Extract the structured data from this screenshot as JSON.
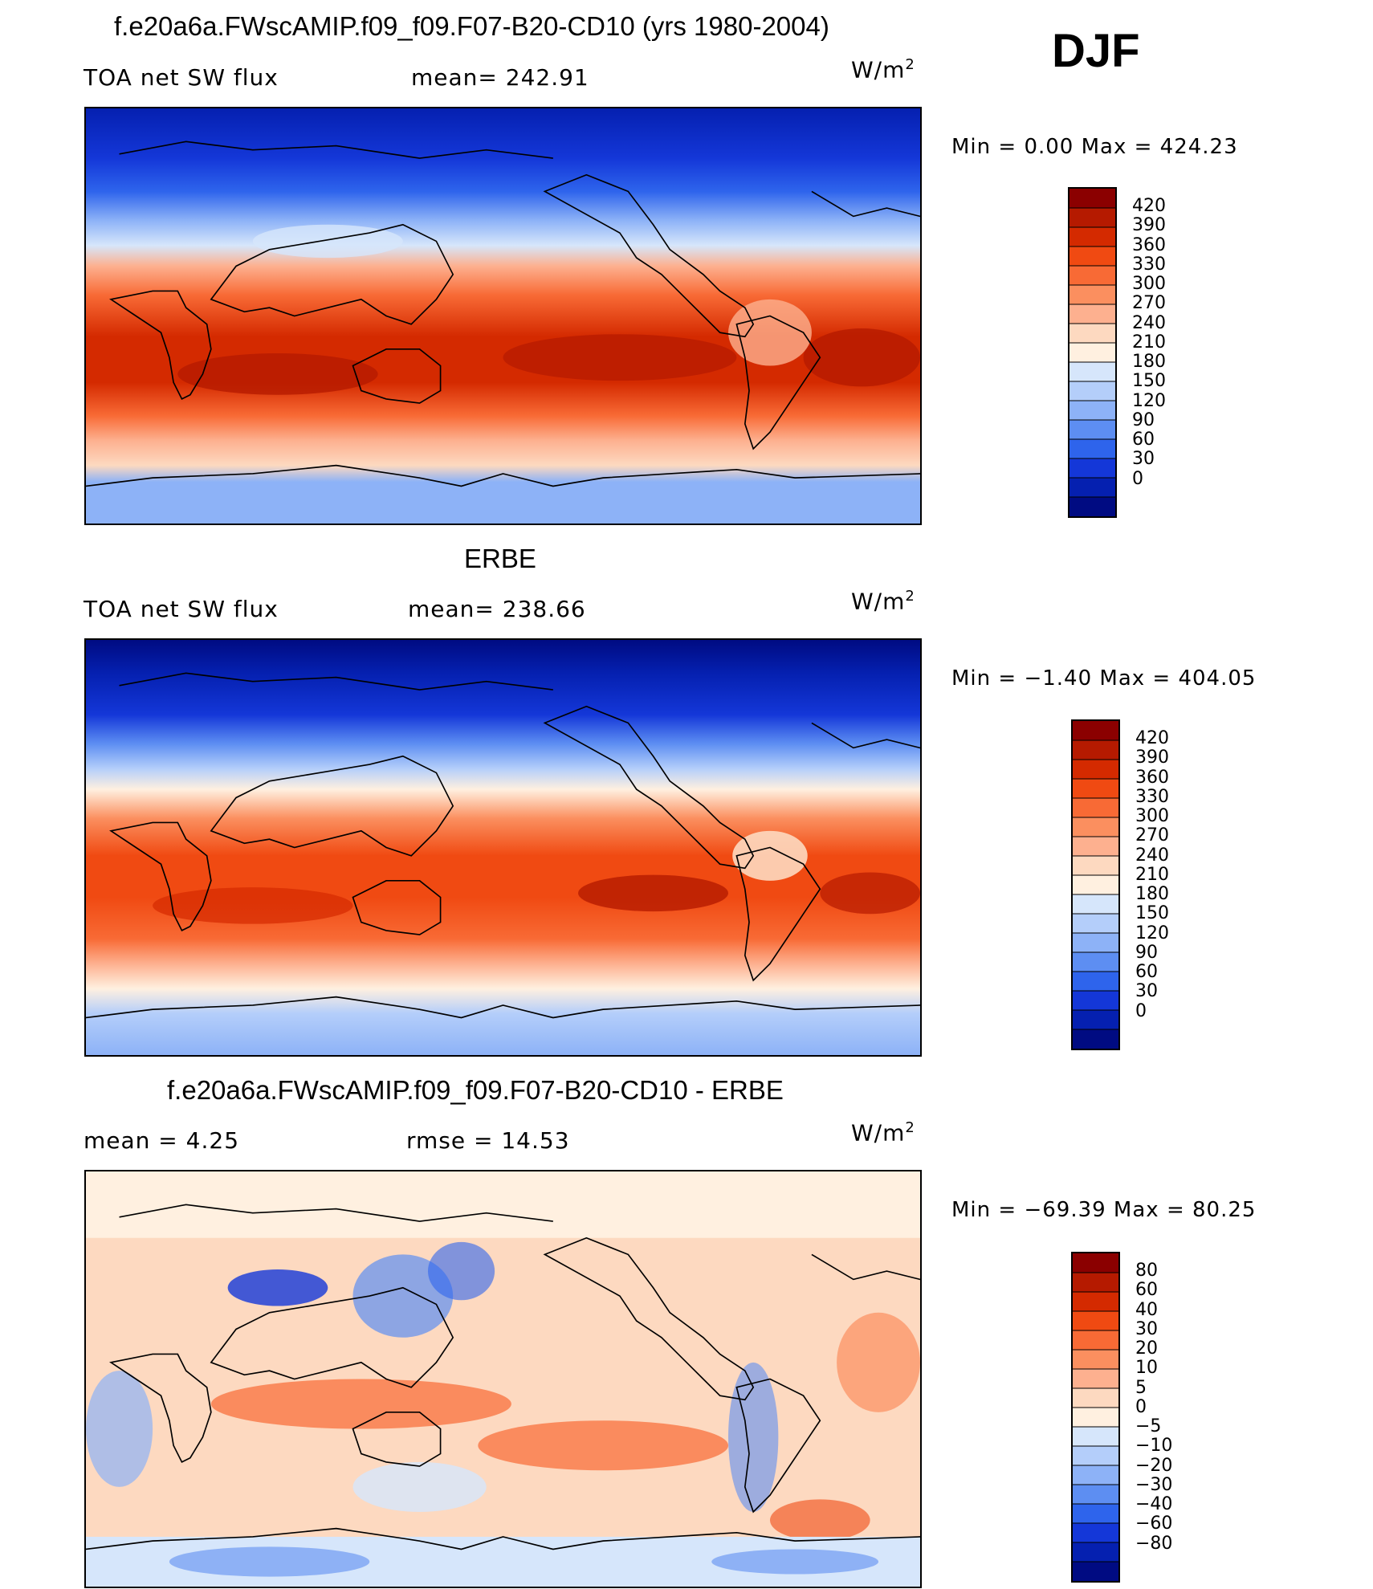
{
  "season": "DJF",
  "units_base": "W/m",
  "units_exp": "2",
  "panels": [
    {
      "title": "f.e20a6a.FWscAMIP.f09_f09.F07-B20-CD10 (yrs 1980-2004)",
      "left": "TOA net SW flux",
      "mid": "mean= 242.91",
      "minmax": "Min =    0.00 Max = 424.23"
    },
    {
      "title": "ERBE",
      "left": "TOA net SW flux",
      "mid": "mean= 238.66",
      "minmax": "Min =  −1.40 Max = 404.05"
    },
    {
      "title": "f.e20a6a.FWscAMIP.f09_f09.F07-B20-CD10 - ERBE",
      "left": "mean =    4.25",
      "mid": "rmse =   14.53",
      "minmax": "Min = −69.39 Max =  80.25"
    }
  ],
  "colorbars": [
    {
      "labels": [
        "420",
        "390",
        "360",
        "330",
        "300",
        "270",
        "240",
        "210",
        "180",
        "150",
        "120",
        "90",
        "60",
        "30",
        "0"
      ],
      "colors": [
        "#8b0000",
        "#b51a00",
        "#d42a00",
        "#f04a12",
        "#f86a35",
        "#fb8f5f",
        "#fdb08f",
        "#fdd9c0",
        "#fff0e0",
        "#d6e6fb",
        "#b4cefa",
        "#8db2f7",
        "#5d8ef2",
        "#2e64ec",
        "#1437d8",
        "#0520b0",
        "#000b82"
      ]
    },
    {
      "labels": [
        "420",
        "390",
        "360",
        "330",
        "300",
        "270",
        "240",
        "210",
        "180",
        "150",
        "120",
        "90",
        "60",
        "30",
        "0"
      ],
      "colors": [
        "#8b0000",
        "#b51a00",
        "#d42a00",
        "#f04a12",
        "#f86a35",
        "#fb8f5f",
        "#fdb08f",
        "#fdd9c0",
        "#fff0e0",
        "#d6e6fb",
        "#b4cefa",
        "#8db2f7",
        "#5d8ef2",
        "#2e64ec",
        "#1437d8",
        "#0520b0",
        "#000b82"
      ]
    },
    {
      "labels": [
        "80",
        "60",
        "40",
        "30",
        "20",
        "10",
        "5",
        "0",
        "−5",
        "−10",
        "−20",
        "−30",
        "−40",
        "−60",
        "−80"
      ],
      "colors": [
        "#8b0000",
        "#b51a00",
        "#d42a00",
        "#f04a12",
        "#f86a35",
        "#fb8f5f",
        "#fdb08f",
        "#fdd9c0",
        "#fff0e0",
        "#d6e6fb",
        "#b4cefa",
        "#8db2f7",
        "#5d8ef2",
        "#2e64ec",
        "#1437d8",
        "#0520b0",
        "#000b82"
      ]
    }
  ]
}
